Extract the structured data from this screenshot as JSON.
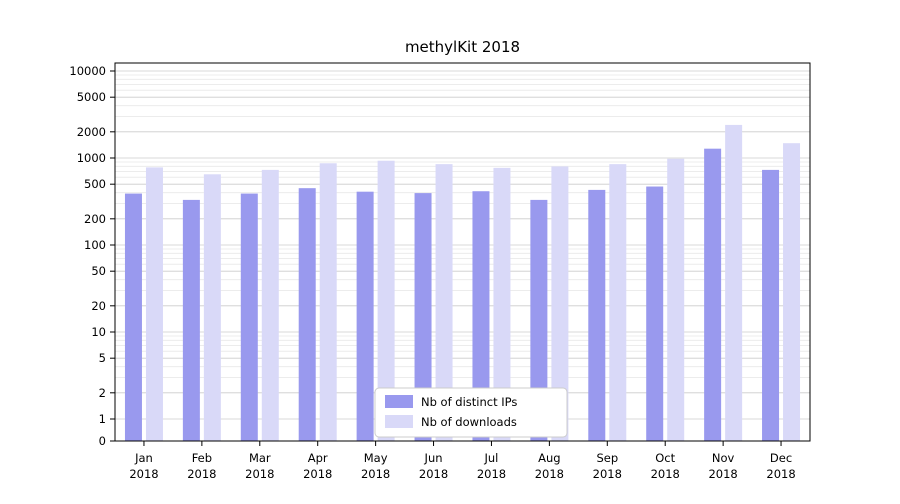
{
  "title": "methylKit 2018",
  "chart_data": {
    "type": "bar",
    "title": "methylKit 2018",
    "yscale": "symlog",
    "grid": true,
    "legend_position": "bottom-center",
    "ylim": [
      0,
      10000
    ],
    "yticks": [
      0,
      1,
      2,
      5,
      10,
      20,
      50,
      100,
      200,
      500,
      1000,
      2000,
      5000,
      10000
    ],
    "categories": [
      {
        "month": "Jan",
        "year": "2018"
      },
      {
        "month": "Feb",
        "year": "2018"
      },
      {
        "month": "Mar",
        "year": "2018"
      },
      {
        "month": "Apr",
        "year": "2018"
      },
      {
        "month": "May",
        "year": "2018"
      },
      {
        "month": "Jun",
        "year": "2018"
      },
      {
        "month": "Jul",
        "year": "2018"
      },
      {
        "month": "Aug",
        "year": "2018"
      },
      {
        "month": "Sep",
        "year": "2018"
      },
      {
        "month": "Oct",
        "year": "2018"
      },
      {
        "month": "Nov",
        "year": "2018"
      },
      {
        "month": "Dec",
        "year": "2018"
      }
    ],
    "series": [
      {
        "name": "Nb of distinct IPs",
        "color": "#9999ee",
        "values": [
          390,
          330,
          390,
          450,
          410,
          395,
          415,
          330,
          430,
          470,
          1280,
          730
        ]
      },
      {
        "name": "Nb of downloads",
        "color": "#d9d9f8",
        "values": [
          780,
          650,
          730,
          870,
          930,
          850,
          770,
          800,
          850,
          980,
          2400,
          1480
        ]
      }
    ],
    "colors": {
      "major_grid": "#d8d8d8",
      "minor_grid": "#ececec",
      "frame": "#000000",
      "legend_border": "#cccccc",
      "legend_bg": "#ffffff"
    }
  }
}
